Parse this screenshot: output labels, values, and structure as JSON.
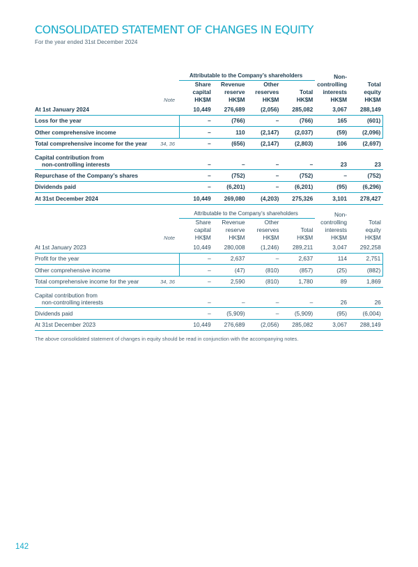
{
  "title": "CONSOLIDATED STATEMENT OF CHANGES IN EQUITY",
  "subtitle": "For the year ended 31st December 2024",
  "header": {
    "attrib": "Attributable to the Company’s shareholders",
    "note": "Note",
    "share_capital": [
      "Share",
      "capital",
      "HK$M"
    ],
    "revenue_2024": [
      "Revenue",
      "reserves",
      "HK$M"
    ],
    "revenue_2023": [
      "Revenue",
      "reserve",
      "HK$M"
    ],
    "other_reserves": [
      "Other",
      "reserves",
      "HK$M"
    ],
    "total": [
      "Total",
      "HK$M"
    ],
    "nci": [
      "Non-",
      "controlling",
      "interests",
      "HK$M"
    ],
    "total_equity": [
      "Total",
      "equity",
      "HK$M"
    ]
  },
  "table_2024": [
    {
      "label": "At 1st January 2024",
      "note": "",
      "values": [
        "10,449",
        "276,689",
        "(2,056)",
        "285,082",
        "3,067",
        "288,149"
      ]
    },
    {
      "label": "Loss for the year",
      "note": "",
      "values": [
        "–",
        "(766)",
        "–",
        "(766)",
        "165",
        "(601)"
      ]
    },
    {
      "label": "Other comprehensive income",
      "note": "",
      "values": [
        "–",
        "110",
        "(2,147)",
        "(2,037)",
        "(59)",
        "(2,096)"
      ]
    },
    {
      "label": "Total comprehensive income for the year",
      "note": "34, 36",
      "values": [
        "–",
        "(656)",
        "(2,147)",
        "(2,803)",
        "106",
        "(2,697)"
      ]
    },
    {
      "label": "Capital contribution from",
      "label2": "non-controlling interests",
      "note": "",
      "values": [
        "–",
        "–",
        "–",
        "–",
        "23",
        "23"
      ]
    },
    {
      "label": "Repurchase of the Company’s shares",
      "note": "",
      "values": [
        "–",
        "(752)",
        "–",
        "(752)",
        "–",
        "(752)"
      ]
    },
    {
      "label": "Dividends paid",
      "note": "",
      "values": [
        "–",
        "(6,201)",
        "–",
        "(6,201)",
        "(95)",
        "(6,296)"
      ]
    },
    {
      "label": "At 31st December 2024",
      "note": "",
      "values": [
        "10,449",
        "269,080",
        "(4,203)",
        "275,326",
        "3,101",
        "278,427"
      ]
    }
  ],
  "table_2023": [
    {
      "label": "At 1st January 2023",
      "note": "",
      "values": [
        "10,449",
        "280,008",
        "(1,246)",
        "289,211",
        "3,047",
        "292,258"
      ]
    },
    {
      "label": "Profit for the year",
      "note": "",
      "values": [
        "–",
        "2,637",
        "–",
        "2,637",
        "114",
        "2,751"
      ]
    },
    {
      "label": "Other comprehensive income",
      "note": "",
      "values": [
        "–",
        "(47)",
        "(810)",
        "(857)",
        "(25)",
        "(882)"
      ]
    },
    {
      "label": "Total comprehensive income for the year",
      "note": "34, 36",
      "values": [
        "–",
        "2,590",
        "(810)",
        "1,780",
        "89",
        "1,869"
      ]
    },
    {
      "label": "Capital contribution from",
      "label2": "non-controlling interests",
      "note": "",
      "values": [
        "–",
        "–",
        "–",
        "–",
        "26",
        "26"
      ]
    },
    {
      "label": "Dividends paid",
      "note": "",
      "values": [
        "–",
        "(5,909)",
        "–",
        "(5,909)",
        "(95)",
        "(6,004)"
      ]
    },
    {
      "label": "At 31st December 2023",
      "note": "",
      "values": [
        "10,449",
        "276,689",
        "(2,056)",
        "285,082",
        "3,067",
        "288,149"
      ]
    }
  ],
  "footnote": "The above consolidated statement of changes in equity should be read in conjunction with the accompanying notes.",
  "page_number": "142",
  "colors": {
    "accent": "#17aac9",
    "rule": "#1ea5c4",
    "text": "#1c3a4d"
  }
}
